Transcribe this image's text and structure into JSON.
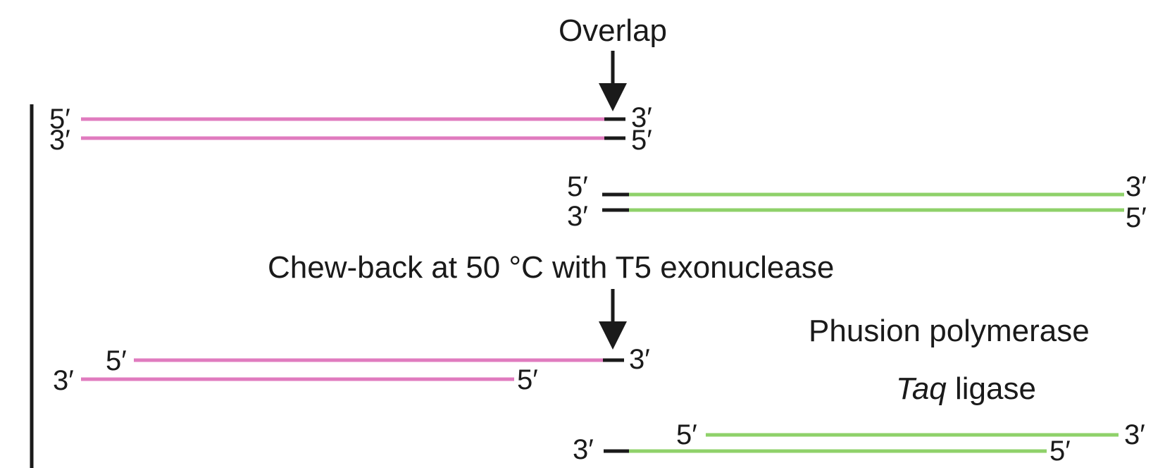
{
  "colors": {
    "fragment_a": "#e07bbf",
    "fragment_b": "#8fd16a",
    "overlap": "#1a1a1a"
  },
  "labels": {
    "overlap": "Overlap",
    "chewback": "Chew-back at 50 °C with T5 exonuclease",
    "polymerase": "Phusion polymerase",
    "ligase_italic": "Taq",
    "ligase_rest": " ligase"
  },
  "ends": {
    "five": "5′",
    "three": "3′"
  },
  "icons": {
    "arrows": "down-arrow-icon"
  }
}
